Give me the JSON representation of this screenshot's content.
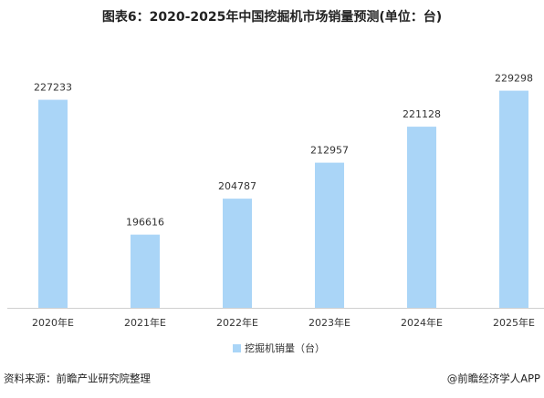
{
  "chart_data": {
    "type": "bar",
    "title": "图表6：2020-2025年中国挖掘机市场销量预测(单位：台)",
    "categories": [
      "2020年E",
      "2021年E",
      "2022年E",
      "2023年E",
      "2024年E",
      "2025年E"
    ],
    "series": [
      {
        "name": "挖掘机销量（台）",
        "color": "#aad5f7",
        "values": [
          227233,
          196616,
          204787,
          212957,
          221128,
          229298
        ]
      }
    ],
    "ylim": [
      180000,
      235000
    ],
    "legend": "bottom",
    "source": "资料来源：前瞻产业研究院整理",
    "credit": "@前瞻经济学人APP"
  }
}
